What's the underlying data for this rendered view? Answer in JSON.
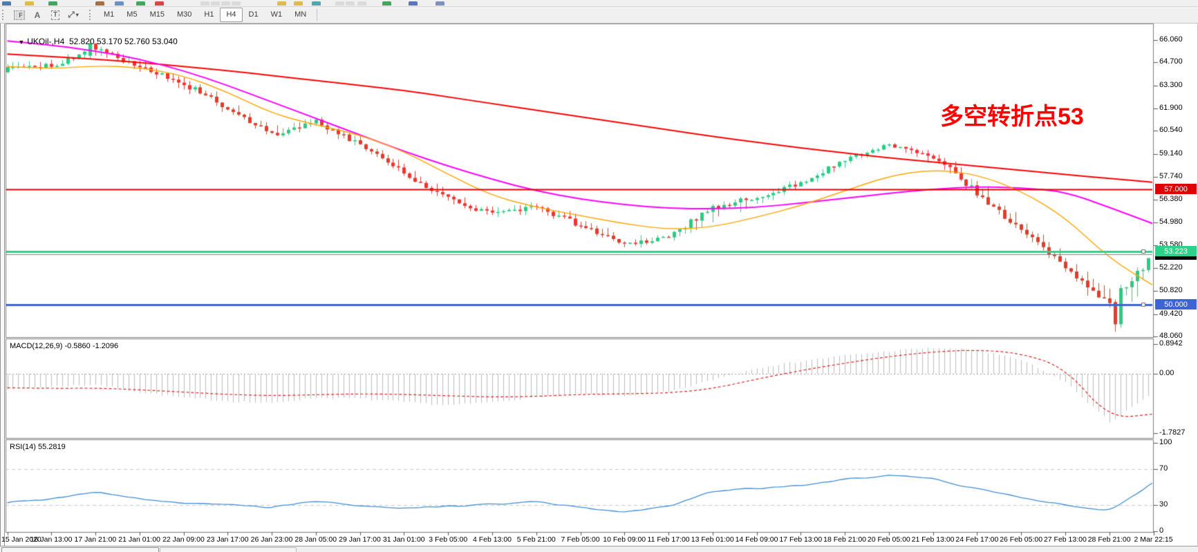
{
  "toolbar": {
    "tools": [
      {
        "name": "fibonacci-tool",
        "glyph": "F",
        "style": "dotbox"
      },
      {
        "name": "letter-a-tool",
        "glyph": "A",
        "style": "plain"
      },
      {
        "name": "text-label-tool",
        "glyph": "T",
        "style": "boxed"
      },
      {
        "name": "shapes-arrows-tool",
        "glyph": "⤢",
        "style": "plain",
        "caret": "▾"
      }
    ],
    "timeframes": [
      {
        "label": "M1",
        "active": false
      },
      {
        "label": "M5",
        "active": false
      },
      {
        "label": "M15",
        "active": false
      },
      {
        "label": "M30",
        "active": false
      },
      {
        "label": "H1",
        "active": false
      },
      {
        "label": "H4",
        "active": true
      },
      {
        "label": "D1",
        "active": false
      },
      {
        "label": "W1",
        "active": false
      },
      {
        "label": "MN",
        "active": false
      }
    ],
    "top_row_fragments": [
      {
        "x": 3,
        "color": "#3a6ea5"
      },
      {
        "x": 36,
        "color": "#e0b43a"
      },
      {
        "x": 70,
        "color": "#2e9e4f"
      },
      {
        "x": 138,
        "color": "#a0622d"
      },
      {
        "x": 166,
        "color": "#5b87c5"
      },
      {
        "x": 197,
        "color": "#2e9e4f"
      },
      {
        "x": 224,
        "color": "#cc3a2f"
      },
      {
        "x": 290,
        "color": "#d8d8d8"
      },
      {
        "x": 305,
        "color": "#d8d8d8"
      },
      {
        "x": 320,
        "color": "#d8d8d8"
      },
      {
        "x": 335,
        "color": "#d8d8d8"
      },
      {
        "x": 401,
        "color": "#e0b43a"
      },
      {
        "x": 425,
        "color": "#e0b43a"
      },
      {
        "x": 451,
        "color": "#3aa0a8"
      },
      {
        "x": 485,
        "color": "#d8d8d8"
      },
      {
        "x": 500,
        "color": "#d8d8d8"
      },
      {
        "x": 517,
        "color": "#d8d8d8"
      },
      {
        "x": 553,
        "color": "#2e9e4f"
      },
      {
        "x": 591,
        "color": "#4668b8"
      },
      {
        "x": 630,
        "color": "#6f87b8"
      }
    ]
  },
  "bottom_bar": {
    "tab_count": 2
  },
  "chart_data": [
    {
      "type": "candlestick",
      "symbol": "UKOil-",
      "period": "H4",
      "title_line": "UKOil-,H4  52.820 53.170 52.760 53.040",
      "last_bar": {
        "open": 52.82,
        "high": 53.17,
        "low": 52.76,
        "close": 53.04
      },
      "current_price": "53.040",
      "annotation": "多空转折点53",
      "annotation_color": "#FF0000",
      "bars_per_label": 8,
      "x_labels": [
        "15 Jan 2020",
        "16 Jan 13:00",
        "17 Jan 21:00",
        "21 Jan 01:00",
        "22 Jan 09:00",
        "23 Jan 17:00",
        "26 Jan 23:00",
        "28 Jan 05:00",
        "29 Jan 17:00",
        "31 Jan 01:00",
        "3 Feb 05:00",
        "4 Feb 13:00",
        "5 Feb 21:00",
        "7 Feb 05:00",
        "10 Feb 09:00",
        "11 Feb 17:00",
        "13 Feb 01:00",
        "14 Feb 09:00",
        "17 Feb 13:00",
        "18 Feb 21:00",
        "20 Feb 05:00",
        "21 Feb 13:00",
        "24 Feb 17:00",
        "26 Feb 05:00",
        "27 Feb 13:00",
        "28 Feb 21:00",
        "2 Mar 22:15"
      ],
      "close": [
        64.3,
        64.5,
        65.5,
        64.4,
        63.4,
        61.9,
        60.3,
        61.1,
        59.7,
        58.0,
        56.4,
        55.5,
        55.9,
        54.8,
        53.6,
        54.1,
        55.9,
        56.5,
        57.4,
        58.8,
        59.7,
        59.0,
        56.8,
        54.5,
        52.2,
        50.0,
        53.04
      ],
      "high": [
        65.0,
        65.3,
        66.06,
        65.2,
        64.3,
        62.9,
        61.3,
        61.7,
        60.6,
        59.2,
        57.3,
        56.3,
        56.5,
        55.9,
        54.6,
        54.5,
        56.3,
        57.0,
        57.9,
        59.2,
        59.96,
        59.6,
        58.9,
        56.0,
        53.6,
        51.9,
        53.22
      ],
      "low": [
        63.8,
        64.0,
        64.8,
        63.8,
        62.6,
        61.2,
        59.9,
        60.2,
        59.2,
        57.6,
        55.7,
        55.0,
        55.2,
        54.3,
        53.1,
        53.3,
        54.0,
        55.6,
        56.6,
        57.9,
        59.0,
        58.2,
        56.3,
        54.0,
        51.6,
        48.35,
        50.2
      ],
      "up_color": "#2BCB81",
      "down_color": "#E8392D",
      "moving_averages": [
        {
          "name": "slow-ma",
          "color": "#FF0000",
          "width": 2,
          "values": [
            65.2,
            65.05,
            64.9,
            64.7,
            64.45,
            64.2,
            63.9,
            63.6,
            63.3,
            63.0,
            62.6,
            62.2,
            61.8,
            61.4,
            61.0,
            60.6,
            60.2,
            59.85,
            59.5,
            59.2,
            58.9,
            58.65,
            58.4,
            58.15,
            57.9,
            57.65,
            57.42
          ]
        },
        {
          "name": "mid-ma",
          "color": "#FF00FF",
          "width": 2,
          "values": [
            66.0,
            65.75,
            65.4,
            64.9,
            64.2,
            63.3,
            62.3,
            61.3,
            60.3,
            59.3,
            58.4,
            57.6,
            56.9,
            56.4,
            56.05,
            55.85,
            55.8,
            55.9,
            56.15,
            56.45,
            56.75,
            57.0,
            57.15,
            57.1,
            56.85,
            55.9,
            54.9
          ]
        },
        {
          "name": "fast-ma",
          "color": "#FFA500",
          "width": 1.4,
          "values": [
            64.45,
            64.3,
            64.5,
            64.4,
            63.9,
            62.9,
            61.6,
            60.9,
            60.3,
            59.3,
            57.9,
            56.6,
            55.9,
            55.4,
            54.9,
            54.55,
            54.7,
            55.3,
            56.0,
            56.9,
            57.8,
            58.2,
            57.9,
            56.9,
            55.3,
            52.8,
            51.15
          ]
        }
      ],
      "horizontal_lines": [
        {
          "label": "57.000",
          "value": 57.0,
          "color": "#E00000",
          "width": 2
        },
        {
          "label": "53.223",
          "value": 53.223,
          "color": "#2BD38A",
          "width": 3
        },
        {
          "label": "50.000",
          "value": 50.0,
          "color": "#3E64D4",
          "width": 3
        }
      ],
      "current_price_line_color": "#808080",
      "current_price_badge_color": "#000000",
      "y_ticks": [
        "66.060",
        "64.700",
        "63.300",
        "61.900",
        "60.540",
        "59.140",
        "57.740",
        "56.380",
        "54.980",
        "53.580",
        "52.220",
        "50.820",
        "49.420",
        "48.060"
      ],
      "ylim": [
        48.02,
        67.06
      ]
    },
    {
      "type": "macd",
      "label_full": "MACD(12,26,9) -0.5860 -1.2096",
      "macd_current": -0.586,
      "signal_current": -1.2096,
      "histogram": [
        -0.45,
        -0.38,
        -0.32,
        -0.55,
        -0.72,
        -0.82,
        -0.88,
        -0.72,
        -0.75,
        -0.85,
        -0.95,
        -0.85,
        -0.7,
        -0.62,
        -0.66,
        -0.55,
        -0.18,
        0.18,
        0.38,
        0.55,
        0.68,
        0.78,
        0.7,
        0.42,
        -0.25,
        -1.45,
        -0.586
      ],
      "signal": [
        -0.42,
        -0.44,
        -0.43,
        -0.48,
        -0.55,
        -0.62,
        -0.66,
        -0.63,
        -0.6,
        -0.62,
        -0.66,
        -0.7,
        -0.68,
        -0.62,
        -0.6,
        -0.58,
        -0.45,
        -0.16,
        0.1,
        0.32,
        0.52,
        0.66,
        0.72,
        0.62,
        0.18,
        -1.35,
        -1.2096
      ],
      "histogram_color": "#BBBBBB",
      "signal_color": "#DD2222",
      "y_ticks": [
        "0.8942",
        "0.00",
        "-1.7827"
      ],
      "ylim": [
        -1.93,
        1.06
      ]
    },
    {
      "type": "line",
      "label_full": "RSI(14) 55.2819",
      "current": 55.2819,
      "values": [
        33,
        37,
        45,
        36,
        32,
        30,
        27,
        34,
        29,
        26,
        28,
        31,
        33,
        27,
        22,
        28,
        45,
        48,
        52,
        58,
        64,
        60,
        48,
        38,
        30,
        22,
        55.28
      ],
      "color": "#3F8CD5",
      "levels": [
        70,
        30
      ],
      "y_ticks": [
        "100",
        "70",
        "30",
        "0"
      ],
      "ylim": [
        0,
        100
      ]
    }
  ]
}
